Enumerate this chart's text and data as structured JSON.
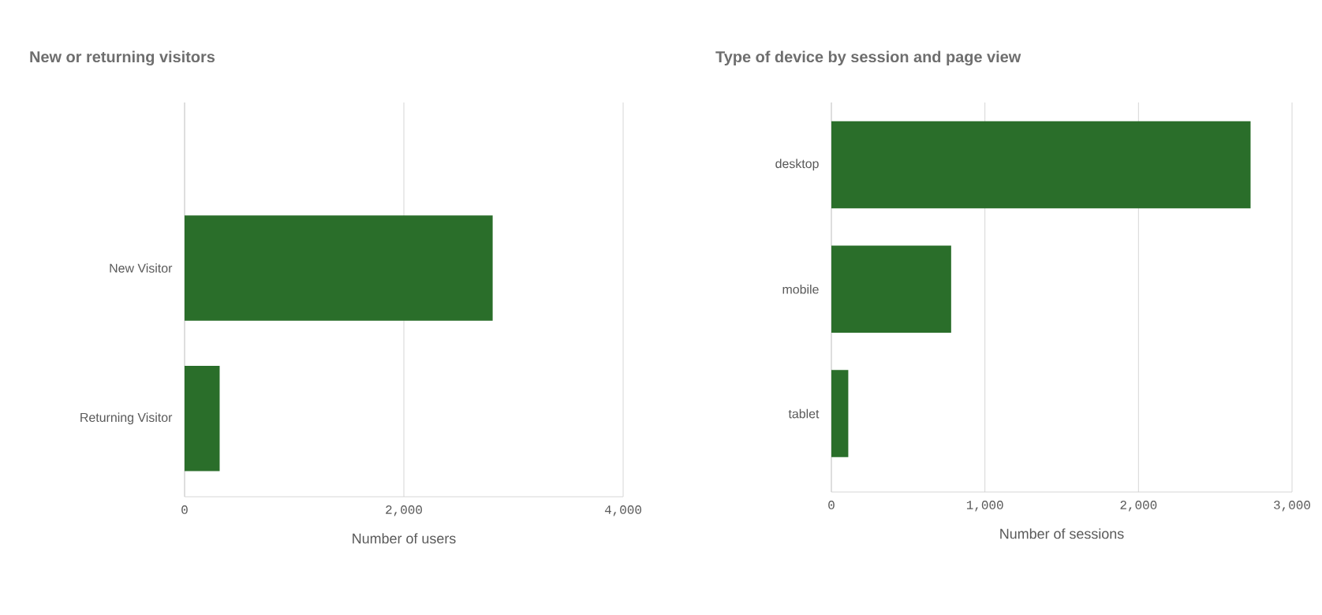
{
  "chart_data": [
    {
      "type": "bar",
      "orientation": "horizontal",
      "title": "New or returning visitors",
      "xlabel": "Number of users",
      "categories": [
        "New Visitor",
        "Returning Visitor"
      ],
      "values": [
        2810,
        320
      ],
      "color": "#2a6e2a",
      "xlim": [
        0,
        4000
      ],
      "xticks": [
        {
          "value": 0,
          "label": "0"
        },
        {
          "value": 2000,
          "label": "2,000"
        },
        {
          "value": 4000,
          "label": "4,000"
        }
      ],
      "grid": "x"
    },
    {
      "type": "bar",
      "orientation": "horizontal",
      "title": "Type of device by session and page view",
      "xlabel": "Number of sessions",
      "categories": [
        "desktop",
        "mobile",
        "tablet"
      ],
      "values": [
        2730,
        780,
        110
      ],
      "color": "#2a6e2a",
      "xlim": [
        0,
        3000
      ],
      "xticks": [
        {
          "value": 0,
          "label": "0"
        },
        {
          "value": 1000,
          "label": "1,000"
        },
        {
          "value": 2000,
          "label": "2,000"
        },
        {
          "value": 3000,
          "label": "3,000"
        }
      ],
      "grid": "x"
    }
  ]
}
